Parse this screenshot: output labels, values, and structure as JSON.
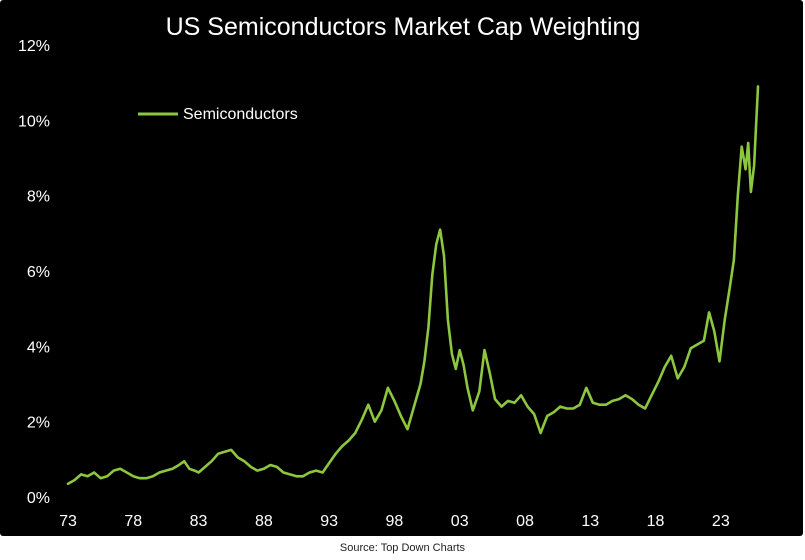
{
  "chart_data": {
    "type": "line",
    "title": "US Semiconductors Market Cap Weighting",
    "xlabel": "",
    "ylabel": "",
    "xlim": [
      1973,
      2026
    ],
    "ylim": [
      0,
      12
    ],
    "x_tick_labels": [
      "73",
      "78",
      "83",
      "88",
      "93",
      "98",
      "03",
      "08",
      "13",
      "18",
      "23"
    ],
    "x_tick_values": [
      1973,
      1978,
      1983,
      1988,
      1993,
      1998,
      2003,
      2008,
      2013,
      2018,
      2023
    ],
    "y_tick_labels": [
      "0%",
      "2%",
      "4%",
      "6%",
      "8%",
      "10%",
      "12%"
    ],
    "y_tick_values": [
      0,
      2,
      4,
      6,
      8,
      10,
      12
    ],
    "grid": false,
    "legend_position": "top-left",
    "line_color": "#8dc63f",
    "background_color": "#000000",
    "series": [
      {
        "name": "Semiconductors",
        "points": [
          [
            1973.0,
            0.35
          ],
          [
            1973.5,
            0.45
          ],
          [
            1974.0,
            0.6
          ],
          [
            1974.5,
            0.55
          ],
          [
            1975.0,
            0.65
          ],
          [
            1975.5,
            0.5
          ],
          [
            1976.0,
            0.55
          ],
          [
            1976.5,
            0.7
          ],
          [
            1977.0,
            0.75
          ],
          [
            1977.5,
            0.65
          ],
          [
            1978.0,
            0.55
          ],
          [
            1978.5,
            0.5
          ],
          [
            1979.0,
            0.5
          ],
          [
            1979.5,
            0.55
          ],
          [
            1980.0,
            0.65
          ],
          [
            1980.5,
            0.7
          ],
          [
            1981.0,
            0.75
          ],
          [
            1981.5,
            0.85
          ],
          [
            1981.9,
            0.95
          ],
          [
            1982.3,
            0.75
          ],
          [
            1982.7,
            0.7
          ],
          [
            1983.0,
            0.65
          ],
          [
            1983.5,
            0.8
          ],
          [
            1984.0,
            0.95
          ],
          [
            1984.5,
            1.15
          ],
          [
            1985.0,
            1.2
          ],
          [
            1985.5,
            1.25
          ],
          [
            1986.0,
            1.05
          ],
          [
            1986.5,
            0.95
          ],
          [
            1987.0,
            0.8
          ],
          [
            1987.5,
            0.7
          ],
          [
            1988.0,
            0.75
          ],
          [
            1988.5,
            0.85
          ],
          [
            1989.0,
            0.8
          ],
          [
            1989.5,
            0.65
          ],
          [
            1990.0,
            0.6
          ],
          [
            1990.5,
            0.55
          ],
          [
            1991.0,
            0.55
          ],
          [
            1991.5,
            0.65
          ],
          [
            1992.0,
            0.7
          ],
          [
            1992.5,
            0.65
          ],
          [
            1993.0,
            0.9
          ],
          [
            1993.5,
            1.15
          ],
          [
            1994.0,
            1.35
          ],
          [
            1994.5,
            1.5
          ],
          [
            1995.0,
            1.7
          ],
          [
            1995.5,
            2.05
          ],
          [
            1996.0,
            2.45
          ],
          [
            1996.5,
            2.0
          ],
          [
            1997.0,
            2.3
          ],
          [
            1997.5,
            2.9
          ],
          [
            1998.0,
            2.55
          ],
          [
            1998.5,
            2.15
          ],
          [
            1999.0,
            1.8
          ],
          [
            1999.5,
            2.4
          ],
          [
            2000.0,
            3.0
          ],
          [
            2000.3,
            3.6
          ],
          [
            2000.6,
            4.5
          ],
          [
            2000.9,
            5.9
          ],
          [
            2001.2,
            6.7
          ],
          [
            2001.5,
            7.1
          ],
          [
            2001.8,
            6.4
          ],
          [
            2002.1,
            4.7
          ],
          [
            2002.4,
            3.8
          ],
          [
            2002.7,
            3.4
          ],
          [
            2003.0,
            3.9
          ],
          [
            2003.3,
            3.5
          ],
          [
            2003.6,
            2.9
          ],
          [
            2004.0,
            2.3
          ],
          [
            2004.5,
            2.8
          ],
          [
            2004.9,
            3.9
          ],
          [
            2005.3,
            3.3
          ],
          [
            2005.7,
            2.6
          ],
          [
            2006.2,
            2.4
          ],
          [
            2006.7,
            2.55
          ],
          [
            2007.2,
            2.5
          ],
          [
            2007.7,
            2.7
          ],
          [
            2008.2,
            2.4
          ],
          [
            2008.7,
            2.2
          ],
          [
            2009.2,
            1.7
          ],
          [
            2009.7,
            2.15
          ],
          [
            2010.2,
            2.25
          ],
          [
            2010.7,
            2.4
          ],
          [
            2011.2,
            2.35
          ],
          [
            2011.7,
            2.35
          ],
          [
            2012.2,
            2.45
          ],
          [
            2012.7,
            2.9
          ],
          [
            2013.2,
            2.5
          ],
          [
            2013.7,
            2.45
          ],
          [
            2014.2,
            2.45
          ],
          [
            2014.7,
            2.55
          ],
          [
            2015.2,
            2.6
          ],
          [
            2015.7,
            2.7
          ],
          [
            2016.2,
            2.6
          ],
          [
            2016.7,
            2.45
          ],
          [
            2017.2,
            2.35
          ],
          [
            2017.7,
            2.7
          ],
          [
            2018.2,
            3.05
          ],
          [
            2018.7,
            3.45
          ],
          [
            2019.2,
            3.75
          ],
          [
            2019.7,
            3.15
          ],
          [
            2020.2,
            3.45
          ],
          [
            2020.7,
            3.95
          ],
          [
            2021.2,
            4.05
          ],
          [
            2021.7,
            4.15
          ],
          [
            2022.1,
            4.9
          ],
          [
            2022.5,
            4.4
          ],
          [
            2022.9,
            3.6
          ],
          [
            2023.3,
            4.7
          ],
          [
            2023.7,
            5.6
          ],
          [
            2024.0,
            6.3
          ],
          [
            2024.3,
            8.0
          ],
          [
            2024.6,
            9.3
          ],
          [
            2024.9,
            8.7
          ],
          [
            2025.1,
            9.4
          ],
          [
            2025.3,
            8.1
          ],
          [
            2025.55,
            8.8
          ],
          [
            2025.85,
            10.9
          ]
        ]
      }
    ]
  },
  "source_note": "Source: Top Down Charts"
}
